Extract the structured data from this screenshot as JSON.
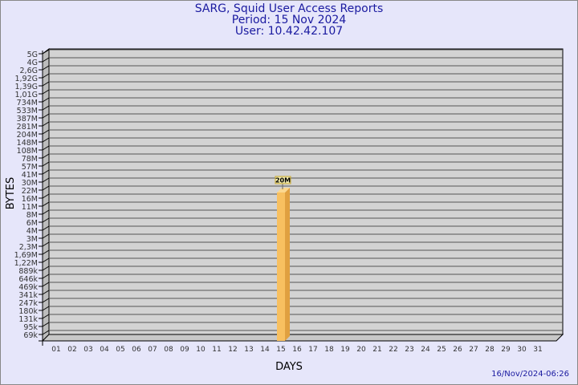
{
  "chart_data": {
    "type": "bar",
    "title": "SARG, Squid User Access Reports",
    "subtitle": [
      "Period: 15 Nov 2024",
      "User: 10.42.42.107"
    ],
    "xlabel": "DAYS",
    "ylabel": "BYTES",
    "categories": [
      "01",
      "02",
      "03",
      "04",
      "05",
      "06",
      "07",
      "08",
      "09",
      "10",
      "11",
      "12",
      "13",
      "14",
      "15",
      "16",
      "17",
      "18",
      "19",
      "20",
      "21",
      "22",
      "23",
      "24",
      "25",
      "26",
      "27",
      "28",
      "29",
      "30",
      "31"
    ],
    "y_tick_labels": [
      "5G",
      "4G",
      "2,6G",
      "1,92G",
      "1,39G",
      "1,01G",
      "734M",
      "533M",
      "387M",
      "281M",
      "204M",
      "148M",
      "108M",
      "78M",
      "57M",
      "41M",
      "30M",
      "22M",
      "16M",
      "11M",
      "8M",
      "6M",
      "4M",
      "3M",
      "2,3M",
      "1,69M",
      "1,22M",
      "889k",
      "646k",
      "469k",
      "341k",
      "247k",
      "180k",
      "131k",
      "95k",
      "69k"
    ],
    "y_scale": "log",
    "grid": true,
    "bars": [
      {
        "day": "15",
        "value_label": "20M",
        "value_bytes": 20000000
      }
    ],
    "bar_color": "#f8c060",
    "background": "#d3d3d3"
  },
  "footer": {
    "timestamp": "16/Nov/2024-06:26"
  }
}
